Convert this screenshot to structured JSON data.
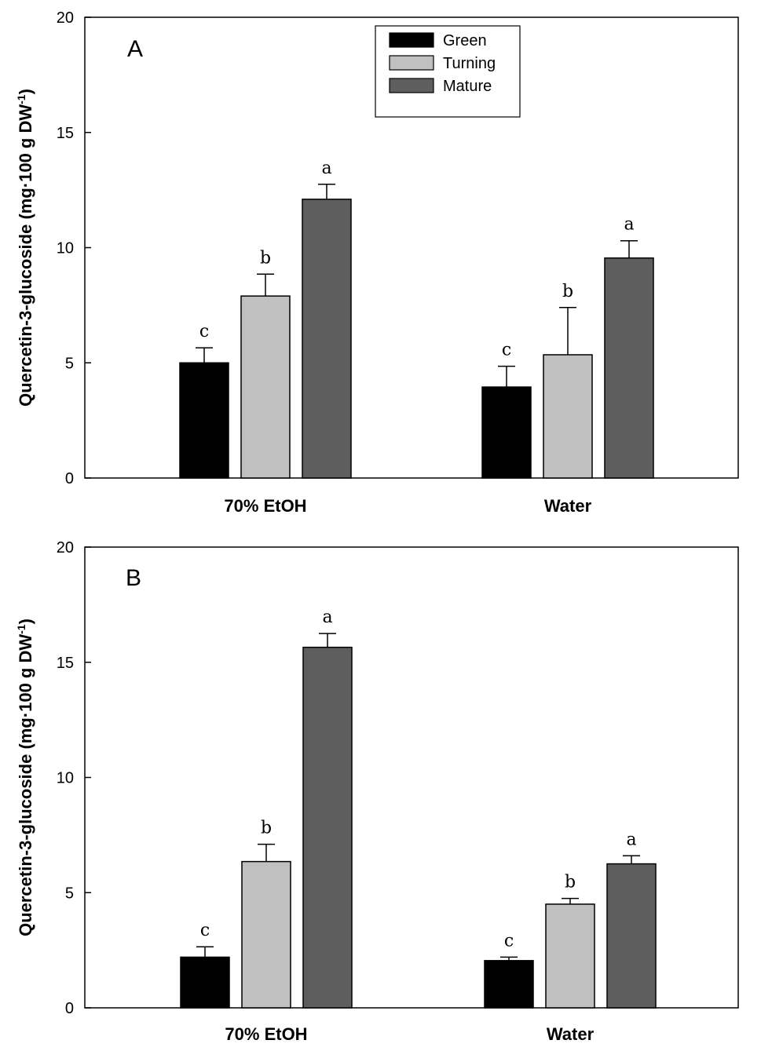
{
  "colors": {
    "Green": "#000000",
    "Turning": "#c0c0c0",
    "Mature": "#5e5e5e"
  },
  "chart_data": [
    {
      "type": "bar",
      "panel_label": "A",
      "categories": [
        "70% EtOH",
        "Water"
      ],
      "series": [
        {
          "name": "Green",
          "values": [
            5.0,
            3.95
          ],
          "errors": [
            0.65,
            0.9
          ],
          "letters": [
            "c",
            "c"
          ]
        },
        {
          "name": "Turning",
          "values": [
            7.9,
            5.35
          ],
          "errors": [
            0.95,
            2.05
          ],
          "letters": [
            "b",
            "b"
          ]
        },
        {
          "name": "Mature",
          "values": [
            12.1,
            9.55
          ],
          "errors": [
            0.65,
            0.75
          ],
          "letters": [
            "a",
            "a"
          ]
        }
      ],
      "ylabel": "Quercetin-3-glucoside (mg·100 g DW",
      "ylabel_sup": "-1",
      "ylabel_close": ")",
      "ylim": [
        0,
        20
      ],
      "yticks": [
        0,
        5,
        10,
        15,
        20
      ],
      "legend": {
        "placement": "top-center",
        "entries": [
          "Green",
          "Turning",
          "Mature"
        ]
      },
      "grid": false
    },
    {
      "type": "bar",
      "panel_label": "B",
      "categories": [
        "70% EtOH",
        "Water"
      ],
      "series": [
        {
          "name": "Green",
          "values": [
            2.2,
            2.05
          ],
          "errors": [
            0.45,
            0.15
          ],
          "letters": [
            "c",
            "c"
          ]
        },
        {
          "name": "Turning",
          "values": [
            6.35,
            4.5
          ],
          "errors": [
            0.75,
            0.25
          ],
          "letters": [
            "b",
            "b"
          ]
        },
        {
          "name": "Mature",
          "values": [
            15.65,
            6.25
          ],
          "errors": [
            0.6,
            0.35
          ],
          "letters": [
            "a",
            "a"
          ]
        }
      ],
      "ylabel": "Quercetin-3-glucoside (mg·100 g DW",
      "ylabel_sup": "-1",
      "ylabel_close": ")",
      "ylim": [
        0,
        20
      ],
      "yticks": [
        0,
        5,
        10,
        15,
        20
      ],
      "grid": false
    }
  ]
}
